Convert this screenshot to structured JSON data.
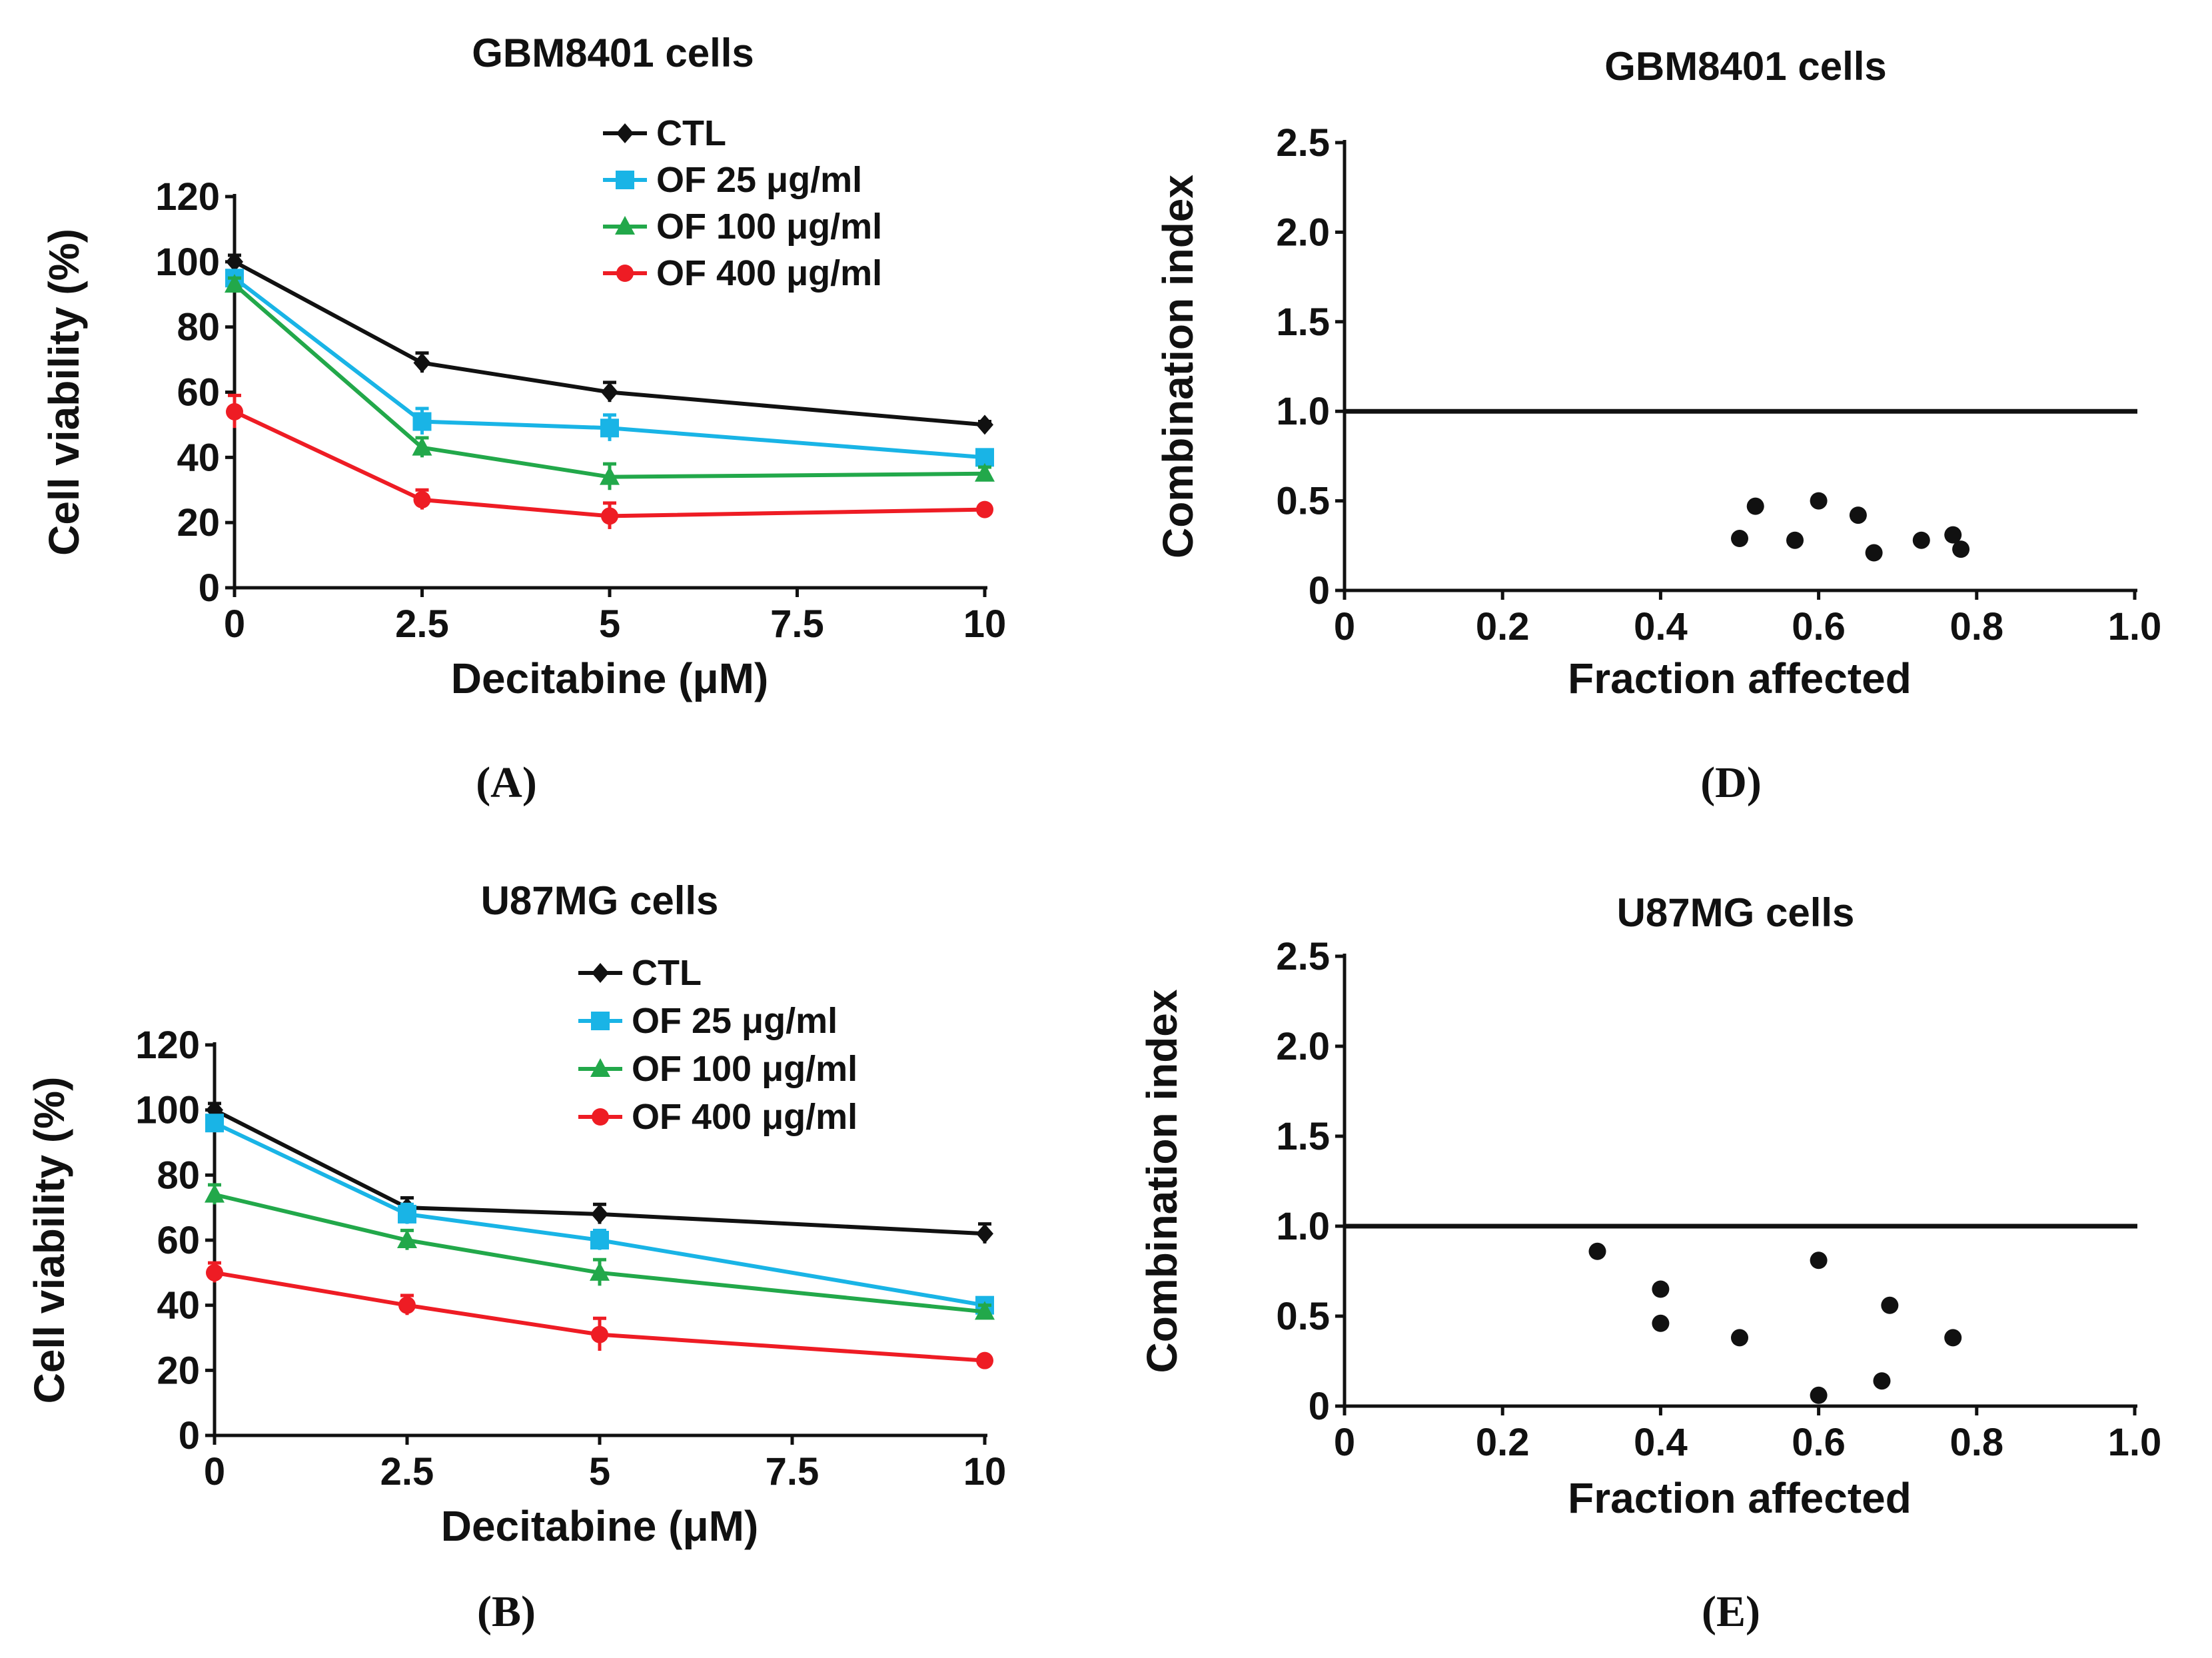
{
  "figure": {
    "panel_labels": [
      "(A)",
      "(B)",
      "(D)",
      "(E)"
    ]
  },
  "chart_data": [
    {
      "id": "A",
      "type": "line",
      "panel_label": "(A)",
      "title": "GBM8401 cells",
      "xlabel": "Decitabine (μM)",
      "ylabel": "Cell viability (%)",
      "x": [
        0,
        2.5,
        5,
        10
      ],
      "xticks": [
        "0",
        "2.5",
        "5",
        "7.5",
        "10"
      ],
      "xtick_values": [
        0,
        2.5,
        5,
        7.5,
        10
      ],
      "yticks": [
        "0",
        "20",
        "40",
        "60",
        "80",
        "100",
        "120"
      ],
      "ytick_values": [
        0,
        20,
        40,
        60,
        80,
        100,
        120
      ],
      "xlim": [
        0,
        10
      ],
      "ylim": [
        0,
        120
      ],
      "legend_position": "top-right",
      "series": [
        {
          "name": "CTL",
          "color": "#111111",
          "marker": "diamond",
          "values": [
            100,
            69,
            60,
            50
          ],
          "errors": [
            2,
            3,
            3,
            1
          ]
        },
        {
          "name": "OF 25 μg/ml",
          "color": "#19b4e6",
          "marker": "square",
          "values": [
            95,
            51,
            49,
            40
          ],
          "errors": [
            2,
            4,
            4,
            2
          ]
        },
        {
          "name": "OF 100 μg/ml",
          "color": "#22a84a",
          "marker": "triangle",
          "values": [
            93,
            43,
            34,
            35
          ],
          "errors": [
            2,
            3,
            4,
            2
          ]
        },
        {
          "name": "OF 400 μg/ml",
          "color": "#ee1c24",
          "marker": "circle",
          "values": [
            54,
            27,
            22,
            24
          ],
          "errors": [
            5,
            3,
            4,
            1
          ]
        }
      ]
    },
    {
      "id": "B",
      "type": "line",
      "panel_label": "(B)",
      "title": "U87MG cells",
      "xlabel": "Decitabine (μM)",
      "ylabel": "Cell viability (%)",
      "x": [
        0,
        2.5,
        5,
        10
      ],
      "xticks": [
        "0",
        "2.5",
        "5",
        "7.5",
        "10"
      ],
      "xtick_values": [
        0,
        2.5,
        5,
        7.5,
        10
      ],
      "yticks": [
        "0",
        "20",
        "40",
        "60",
        "80",
        "100",
        "120"
      ],
      "ytick_values": [
        0,
        20,
        40,
        60,
        80,
        100,
        120
      ],
      "xlim": [
        0,
        10
      ],
      "ylim": [
        0,
        120
      ],
      "legend_position": "top-right",
      "series": [
        {
          "name": "CTL",
          "color": "#111111",
          "marker": "diamond",
          "values": [
            100,
            70,
            68,
            62
          ],
          "errors": [
            2,
            3,
            3,
            3
          ]
        },
        {
          "name": "OF 25 μg/ml",
          "color": "#19b4e6",
          "marker": "square",
          "values": [
            96,
            68,
            60,
            40
          ],
          "errors": [
            2,
            3,
            3,
            2
          ]
        },
        {
          "name": "OF 100 μg/ml",
          "color": "#22a84a",
          "marker": "triangle",
          "values": [
            74,
            60,
            50,
            38
          ],
          "errors": [
            3,
            3,
            4,
            2
          ]
        },
        {
          "name": "OF 400 μg/ml",
          "color": "#ee1c24",
          "marker": "circle",
          "values": [
            50,
            40,
            31,
            23
          ],
          "errors": [
            3,
            3,
            5,
            1
          ]
        }
      ]
    },
    {
      "id": "D",
      "type": "scatter",
      "panel_label": "(D)",
      "title": "GBM8401 cells",
      "xlabel": "Fraction affected",
      "ylabel": "Combination index",
      "xticks": [
        "0",
        "0.2",
        "0.4",
        "0.6",
        "0.8",
        "1.0"
      ],
      "xtick_values": [
        0,
        0.2,
        0.4,
        0.6,
        0.8,
        1.0
      ],
      "yticks": [
        "0",
        "0.5",
        "1.0",
        "1.5",
        "2.0",
        "2.5"
      ],
      "ytick_values": [
        0,
        0.5,
        1.0,
        1.5,
        2.0,
        2.5
      ],
      "xlim": [
        0,
        1.0
      ],
      "ylim": [
        0,
        2.5
      ],
      "reference_line": 1.0,
      "points": [
        {
          "x": 0.5,
          "y": 0.29
        },
        {
          "x": 0.52,
          "y": 0.47
        },
        {
          "x": 0.57,
          "y": 0.28
        },
        {
          "x": 0.6,
          "y": 0.5
        },
        {
          "x": 0.65,
          "y": 0.42
        },
        {
          "x": 0.67,
          "y": 0.21
        },
        {
          "x": 0.73,
          "y": 0.28
        },
        {
          "x": 0.77,
          "y": 0.31
        },
        {
          "x": 0.78,
          "y": 0.23
        }
      ]
    },
    {
      "id": "E",
      "type": "scatter",
      "panel_label": "(E)",
      "title": "U87MG cells",
      "xlabel": "Fraction affected",
      "ylabel": "Combination index",
      "xticks": [
        "0",
        "0.2",
        "0.4",
        "0.6",
        "0.8",
        "1.0"
      ],
      "xtick_values": [
        0,
        0.2,
        0.4,
        0.6,
        0.8,
        1.0
      ],
      "yticks": [
        "0",
        "0.5",
        "1.0",
        "1.5",
        "2.0",
        "2.5"
      ],
      "ytick_values": [
        0,
        0.5,
        1.0,
        1.5,
        2.0,
        2.5
      ],
      "xlim": [
        0,
        1.0
      ],
      "ylim": [
        0,
        2.5
      ],
      "reference_line": 1.0,
      "points": [
        {
          "x": 0.32,
          "y": 0.86
        },
        {
          "x": 0.4,
          "y": 0.65
        },
        {
          "x": 0.4,
          "y": 0.46
        },
        {
          "x": 0.5,
          "y": 0.38
        },
        {
          "x": 0.6,
          "y": 0.81
        },
        {
          "x": 0.6,
          "y": 0.06
        },
        {
          "x": 0.68,
          "y": 0.14
        },
        {
          "x": 0.69,
          "y": 0.56
        },
        {
          "x": 0.77,
          "y": 0.38
        }
      ]
    }
  ]
}
